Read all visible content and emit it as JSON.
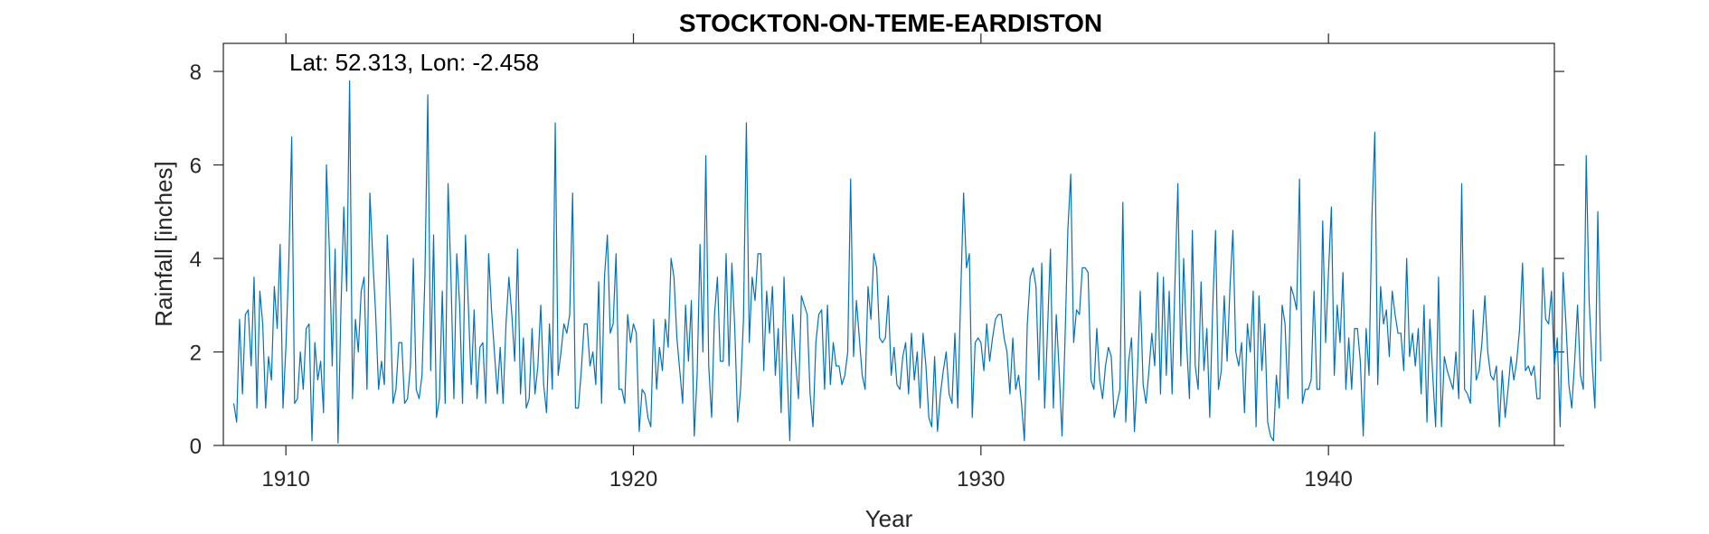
{
  "chart_data": {
    "type": "line",
    "title": "STOCKTON-ON-TEME-EARDISTON",
    "xlabel": "Year",
    "ylabel": "Rainfall [inches]",
    "annotation": "Lat: 52.313, Lon: -2.458",
    "xlim": [
      1908.2,
      1946.5
    ],
    "ylim": [
      0,
      8.6
    ],
    "xticks": [
      1910,
      1920,
      1930,
      1940
    ],
    "xtick_labels": [
      "1910",
      "1920",
      "1930",
      "1940"
    ],
    "yticks": [
      0,
      2,
      4,
      6,
      8
    ],
    "ytick_labels": [
      "0",
      "2",
      "4",
      "6",
      "8"
    ],
    "grid": false,
    "series_color": "#0072BD",
    "x_start": 1908.5,
    "x_step": 0.0833333,
    "series": [
      {
        "values": [
          0.9,
          0.5,
          2.7,
          1.1,
          2.8,
          2.9,
          1.7,
          3.6,
          0.8,
          3.3,
          2.6,
          0.8,
          1.9,
          1.4,
          3.4,
          2.5,
          4.3,
          0.8,
          2.1,
          3.9,
          6.6,
          0.9,
          1.0,
          2.0,
          1.2,
          2.5,
          2.6,
          0.1,
          2.2,
          1.4,
          1.8,
          0.7,
          6.0,
          4.2,
          1.7,
          4.2,
          0.05,
          2.9,
          5.1,
          3.3,
          7.8,
          1.0,
          2.7,
          2.0,
          3.3,
          3.6,
          1.2,
          5.4,
          4.0,
          2.8,
          1.2,
          1.8,
          1.3,
          4.5,
          3.0,
          0.9,
          1.2,
          2.2,
          2.2,
          0.9,
          1.0,
          1.7,
          4.0,
          1.2,
          1.0,
          1.5,
          3.6,
          7.5,
          1.6,
          4.5,
          0.6,
          1.0,
          3.3,
          0.9,
          5.6,
          3.6,
          1.0,
          4.1,
          3.0,
          0.9,
          4.5,
          3.0,
          1.3,
          2.9,
          1.0,
          2.1,
          2.2,
          0.9,
          4.1,
          2.9,
          2.0,
          1.1,
          2.1,
          0.9,
          2.6,
          3.6,
          2.8,
          1.8,
          4.2,
          1.1,
          2.3,
          0.8,
          1.0,
          2.5,
          1.1,
          1.7,
          3.0,
          1.3,
          0.7,
          2.6,
          1.2,
          6.9,
          1.5,
          2.0,
          2.6,
          2.4,
          2.8,
          5.4,
          0.8,
          0.8,
          1.6,
          2.6,
          2.6,
          1.7,
          2.0,
          1.3,
          3.5,
          0.9,
          3.6,
          4.5,
          2.4,
          2.6,
          4.1,
          1.2,
          1.2,
          0.9,
          2.8,
          2.2,
          2.6,
          2.4,
          0.3,
          1.2,
          1.1,
          0.6,
          0.4,
          2.7,
          1.2,
          2.1,
          1.6,
          2.7,
          2.1,
          4.0,
          3.6,
          2.3,
          1.6,
          0.9,
          3.0,
          1.8,
          3.1,
          0.2,
          1.5,
          4.3,
          2.0,
          6.2,
          1.7,
          0.6,
          2.8,
          3.6,
          1.8,
          1.8,
          4.1,
          1.7,
          3.9,
          2.5,
          0.5,
          1.2,
          2.7,
          6.9,
          2.2,
          3.6,
          3.1,
          4.1,
          4.1,
          1.6,
          3.3,
          2.4,
          3.4,
          1.5,
          2.5,
          0.7,
          3.6,
          1.7,
          0.1,
          2.8,
          1.8,
          1.0,
          3.2,
          3.0,
          2.8,
          1.1,
          0.4,
          2.2,
          2.8,
          2.9,
          1.2,
          3.0,
          1.3,
          2.2,
          1.7,
          1.7,
          1.3,
          1.5,
          2.0,
          5.7,
          1.9,
          3.1,
          2.3,
          1.5,
          1.2,
          3.4,
          2.7,
          4.1,
          3.8,
          2.3,
          2.2,
          2.3,
          3.2,
          1.5,
          2.1,
          1.3,
          1.2,
          1.9,
          2.2,
          1.1,
          2.4,
          1.4,
          2.0,
          0.8,
          2.4,
          1.7,
          0.6,
          0.4,
          1.9,
          0.3,
          1.1,
          1.6,
          2.0,
          1.1,
          0.9,
          2.4,
          0.8,
          3.2,
          5.4,
          3.8,
          4.1,
          0.6,
          2.2,
          2.3,
          2.2,
          1.6,
          2.6,
          1.8,
          2.3,
          2.7,
          2.8,
          2.8,
          2.3,
          2.0,
          1.1,
          2.3,
          1.2,
          1.5,
          0.9,
          0.1,
          2.6,
          3.6,
          3.8,
          3.4,
          1.4,
          3.9,
          0.8,
          2.5,
          4.2,
          0.8,
          2.8,
          1.6,
          0.2,
          2.2,
          4.6,
          5.8,
          2.2,
          2.9,
          2.8,
          3.8,
          3.8,
          3.7,
          1.4,
          1.2,
          2.5,
          1.4,
          1.0,
          1.7,
          2.1,
          1.9,
          0.6,
          0.9,
          1.2,
          5.2,
          0.5,
          1.8,
          2.3,
          0.3,
          1.5,
          3.3,
          1.3,
          0.9,
          1.6,
          2.4,
          1.7,
          3.7,
          1.1,
          3.6,
          1.5,
          3.3,
          1.1,
          3.5,
          5.6,
          1.7,
          4.0,
          2.2,
          1.0,
          4.6,
          1.7,
          1.2,
          3.5,
          1.6,
          2.5,
          0.6,
          2.9,
          4.6,
          1.2,
          1.6,
          3.2,
          1.8,
          3.4,
          4.6,
          2.0,
          1.7,
          2.2,
          0.7,
          2.6,
          2.0,
          3.3,
          0.4,
          3.2,
          1.6,
          2.6,
          0.5,
          0.2,
          0.1,
          1.5,
          0.8,
          3.0,
          2.6,
          1.0,
          3.4,
          3.2,
          2.9,
          5.7,
          0.9,
          1.2,
          1.2,
          1.4,
          3.3,
          1.2,
          1.2,
          4.8,
          2.2,
          3.7,
          5.1,
          1.5,
          3.0,
          2.2,
          3.7,
          1.2,
          2.3,
          1.2,
          2.5,
          2.5,
          1.8,
          0.2,
          2.5,
          1.5,
          4.9,
          6.7,
          1.3,
          3.4,
          2.6,
          2.9,
          1.9,
          3.3,
          2.8,
          2.4,
          2.4,
          1.6,
          4.0,
          1.9,
          2.4,
          1.7,
          2.5,
          1.1,
          3.0,
          0.5,
          2.7,
          1.5,
          0.4,
          3.6,
          0.4,
          1.9,
          1.6,
          1.4,
          1.2,
          2.0,
          1.0,
          5.6,
          1.2,
          1.1,
          0.9,
          2.9,
          1.4,
          1.6,
          2.2,
          3.2,
          2.0,
          1.5,
          1.4,
          1.7,
          0.4,
          1.6,
          0.6,
          1.2,
          1.9,
          1.4,
          1.8,
          2.5,
          3.9,
          1.6,
          1.7,
          1.5,
          1.7,
          1.0,
          1.0,
          3.8,
          2.7,
          2.6,
          3.3,
          1.7,
          2.3,
          0.4,
          3.7,
          2.6,
          1.3,
          0.8,
          1.8,
          3.0,
          1.5,
          1.2,
          6.2,
          3.1,
          1.8,
          0.8,
          5.0,
          1.8
        ]
      }
    ]
  }
}
